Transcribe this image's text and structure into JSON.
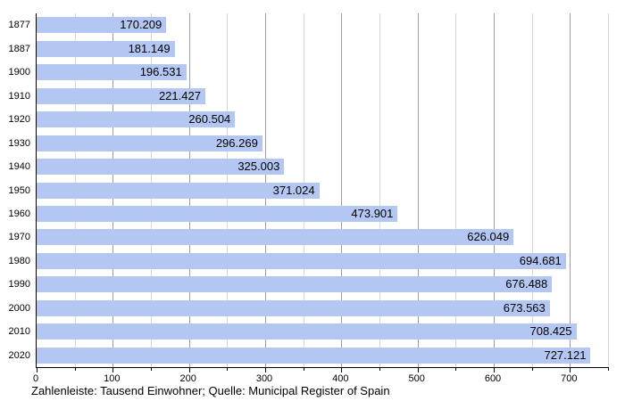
{
  "chart_data": {
    "type": "bar",
    "orientation": "horizontal",
    "title": "",
    "ylabel": "",
    "xlabel": "",
    "categories": [
      "1877",
      "1887",
      "1900",
      "1910",
      "1920",
      "1930",
      "1940",
      "1950",
      "1960",
      "1970",
      "1980",
      "1990",
      "2000",
      "2010",
      "2020"
    ],
    "values": [
      170.209,
      181.149,
      196.531,
      221.427,
      260.504,
      296.269,
      325.003,
      371.024,
      473.901,
      626.049,
      694.681,
      676.488,
      673.563,
      708.425,
      727.121
    ],
    "value_labels": [
      "170.209",
      "181.149",
      "196.531",
      "221.427",
      "260.504",
      "296.269",
      "325.003",
      "371.024",
      "473.901",
      "626.049",
      "694.681",
      "676.488",
      "673.563",
      "708.425",
      "727.121"
    ],
    "units": "Tausend Einwohner",
    "xlim": [
      0,
      750
    ],
    "x_major_ticks": [
      0,
      100,
      200,
      300,
      400,
      500,
      600,
      700
    ],
    "x_minor_step": 50,
    "grid": "vertical-only",
    "legend": "none",
    "caption": "Zahlenleiste: Tausend Einwohner; Quelle: Municipal Register of Spain",
    "colors": {
      "bar": "#b4c7f3",
      "major_grid": "#9e9e9e",
      "minor_grid": "#d8d8d8",
      "axis": "#000000",
      "text": "#000000"
    }
  }
}
